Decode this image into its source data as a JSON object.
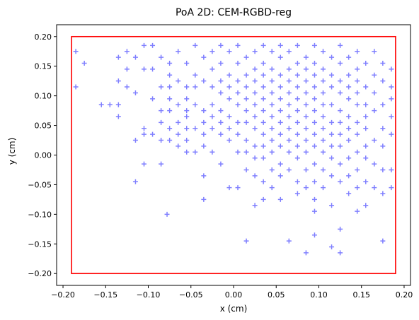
{
  "chart_data": {
    "type": "scatter",
    "title": "PoA 2D: CEM-RGBD-reg",
    "xlabel": "x (cm)",
    "ylabel": "y (cm)",
    "xlim": [
      -0.2075,
      0.2075
    ],
    "ylim": [
      -0.22,
      0.22
    ],
    "xticks": [
      -0.2,
      -0.15,
      -0.1,
      -0.05,
      0.0,
      0.05,
      0.1,
      0.15,
      0.2
    ],
    "xtick_labels": [
      "−0.20",
      "−0.15",
      "−0.10",
      "−0.05",
      "0.00",
      "0.05",
      "0.10",
      "0.15",
      "0.20"
    ],
    "yticks": [
      -0.2,
      -0.15,
      -0.1,
      -0.05,
      0.0,
      0.05,
      0.1,
      0.15,
      0.2
    ],
    "ytick_labels": [
      "−0.20",
      "−0.15",
      "−0.10",
      "−0.05",
      "0.00",
      "0.05",
      "0.10",
      "0.15",
      "0.20"
    ],
    "grid": false,
    "marker": "+",
    "marker_color": "#0000ff",
    "marker_alpha": 0.5,
    "boundary_rect": {
      "x": [
        -0.19,
        0.19
      ],
      "y": [
        -0.2,
        0.2
      ],
      "color": "#ff0000"
    },
    "points": [
      [
        -0.185,
        0.175
      ],
      [
        -0.185,
        0.115
      ],
      [
        -0.175,
        0.155
      ],
      [
        -0.155,
        0.085
      ],
      [
        -0.145,
        0.085
      ],
      [
        -0.135,
        0.165
      ],
      [
        -0.135,
        0.125
      ],
      [
        -0.135,
        0.085
      ],
      [
        -0.135,
        0.065
      ],
      [
        -0.125,
        0.175
      ],
      [
        -0.125,
        0.145
      ],
      [
        -0.125,
        0.115
      ],
      [
        -0.115,
        0.165
      ],
      [
        -0.115,
        0.105
      ],
      [
        -0.115,
        0.025
      ],
      [
        -0.115,
        -0.045
      ],
      [
        -0.105,
        0.185
      ],
      [
        -0.105,
        0.145
      ],
      [
        -0.105,
        0.045
      ],
      [
        -0.105,
        0.035
      ],
      [
        -0.105,
        -0.015
      ],
      [
        -0.095,
        0.185
      ],
      [
        -0.095,
        0.145
      ],
      [
        -0.095,
        0.095
      ],
      [
        -0.095,
        0.035
      ],
      [
        -0.085,
        0.165
      ],
      [
        -0.085,
        0.115
      ],
      [
        -0.085,
        0.075
      ],
      [
        -0.085,
        0.055
      ],
      [
        -0.085,
        0.025
      ],
      [
        -0.085,
        -0.015
      ],
      [
        -0.078,
        -0.1
      ],
      [
        -0.075,
        0.155
      ],
      [
        -0.075,
        0.135
      ],
      [
        -0.075,
        0.115
      ],
      [
        -0.075,
        0.095
      ],
      [
        -0.075,
        0.075
      ],
      [
        -0.075,
        0.045
      ],
      [
        -0.075,
        0.025
      ],
      [
        -0.065,
        0.175
      ],
      [
        -0.065,
        0.125
      ],
      [
        -0.065,
        0.085
      ],
      [
        -0.065,
        0.055
      ],
      [
        -0.065,
        0.035
      ],
      [
        -0.065,
        0.015
      ],
      [
        -0.055,
        0.155
      ],
      [
        -0.055,
        0.115
      ],
      [
        -0.055,
        0.095
      ],
      [
        -0.055,
        0.075
      ],
      [
        -0.055,
        0.065
      ],
      [
        -0.055,
        0.045
      ],
      [
        -0.055,
        0.025
      ],
      [
        -0.055,
        0.005
      ],
      [
        -0.045,
        0.185
      ],
      [
        -0.045,
        0.135
      ],
      [
        -0.045,
        0.115
      ],
      [
        -0.045,
        0.085
      ],
      [
        -0.045,
        0.045
      ],
      [
        -0.045,
        0.005
      ],
      [
        -0.035,
        0.165
      ],
      [
        -0.035,
        0.125
      ],
      [
        -0.035,
        0.075
      ],
      [
        -0.035,
        0.055
      ],
      [
        -0.035,
        0.035
      ],
      [
        -0.035,
        0.015
      ],
      [
        -0.035,
        -0.035
      ],
      [
        -0.035,
        -0.075
      ],
      [
        -0.025,
        0.175
      ],
      [
        -0.025,
        0.145
      ],
      [
        -0.025,
        0.115
      ],
      [
        -0.025,
        0.085
      ],
      [
        -0.025,
        0.065
      ],
      [
        -0.025,
        0.045
      ],
      [
        -0.025,
        0.005
      ],
      [
        -0.015,
        0.185
      ],
      [
        -0.015,
        0.155
      ],
      [
        -0.015,
        0.125
      ],
      [
        -0.015,
        0.105
      ],
      [
        -0.015,
        0.075
      ],
      [
        -0.015,
        0.055
      ],
      [
        -0.015,
        0.035
      ],
      [
        -0.015,
        -0.015
      ],
      [
        -0.005,
        0.175
      ],
      [
        -0.005,
        0.135
      ],
      [
        -0.005,
        0.115
      ],
      [
        -0.005,
        0.095
      ],
      [
        -0.005,
        0.065
      ],
      [
        -0.005,
        0.045
      ],
      [
        -0.005,
        0.025
      ],
      [
        -0.005,
        -0.055
      ],
      [
        0.005,
        0.185
      ],
      [
        0.005,
        0.155
      ],
      [
        0.005,
        0.125
      ],
      [
        0.005,
        0.105
      ],
      [
        0.005,
        0.085
      ],
      [
        0.005,
        0.055
      ],
      [
        0.005,
        0.035
      ],
      [
        0.005,
        0.005
      ],
      [
        0.005,
        -0.055
      ],
      [
        0.015,
        0.165
      ],
      [
        0.015,
        0.135
      ],
      [
        0.015,
        0.115
      ],
      [
        0.015,
        0.095
      ],
      [
        0.015,
        0.075
      ],
      [
        0.015,
        0.055
      ],
      [
        0.015,
        0.025
      ],
      [
        0.015,
        0.005
      ],
      [
        0.015,
        -0.025
      ],
      [
        0.015,
        -0.145
      ],
      [
        0.025,
        0.175
      ],
      [
        0.025,
        0.145
      ],
      [
        0.025,
        0.125
      ],
      [
        0.025,
        0.105
      ],
      [
        0.025,
        0.085
      ],
      [
        0.025,
        0.065
      ],
      [
        0.025,
        0.045
      ],
      [
        0.025,
        0.015
      ],
      [
        0.025,
        -0.005
      ],
      [
        0.025,
        -0.035
      ],
      [
        0.025,
        -0.085
      ],
      [
        0.035,
        0.185
      ],
      [
        0.035,
        0.155
      ],
      [
        0.035,
        0.135
      ],
      [
        0.035,
        0.115
      ],
      [
        0.035,
        0.095
      ],
      [
        0.035,
        0.075
      ],
      [
        0.035,
        0.055
      ],
      [
        0.035,
        0.035
      ],
      [
        0.035,
        0.015
      ],
      [
        0.035,
        -0.005
      ],
      [
        0.035,
        -0.045
      ],
      [
        0.035,
        -0.075
      ],
      [
        0.045,
        0.175
      ],
      [
        0.045,
        0.145
      ],
      [
        0.045,
        0.125
      ],
      [
        0.045,
        0.105
      ],
      [
        0.045,
        0.085
      ],
      [
        0.045,
        0.065
      ],
      [
        0.045,
        0.045
      ],
      [
        0.045,
        0.025
      ],
      [
        0.045,
        0.005
      ],
      [
        0.045,
        -0.025
      ],
      [
        0.045,
        -0.055
      ],
      [
        0.055,
        0.185
      ],
      [
        0.055,
        0.165
      ],
      [
        0.055,
        0.135
      ],
      [
        0.055,
        0.115
      ],
      [
        0.055,
        0.095
      ],
      [
        0.055,
        0.075
      ],
      [
        0.055,
        0.055
      ],
      [
        0.055,
        0.035
      ],
      [
        0.055,
        0.015
      ],
      [
        0.055,
        -0.015
      ],
      [
        0.055,
        -0.035
      ],
      [
        0.055,
        -0.075
      ],
      [
        0.065,
        0.175
      ],
      [
        0.065,
        0.145
      ],
      [
        0.065,
        0.125
      ],
      [
        0.065,
        0.105
      ],
      [
        0.065,
        0.085
      ],
      [
        0.065,
        0.065
      ],
      [
        0.065,
        0.045
      ],
      [
        0.065,
        0.025
      ],
      [
        0.065,
        0.005
      ],
      [
        0.065,
        -0.025
      ],
      [
        0.065,
        -0.145
      ],
      [
        0.075,
        0.185
      ],
      [
        0.075,
        0.155
      ],
      [
        0.075,
        0.135
      ],
      [
        0.075,
        0.115
      ],
      [
        0.075,
        0.095
      ],
      [
        0.075,
        0.075
      ],
      [
        0.075,
        0.055
      ],
      [
        0.075,
        0.035
      ],
      [
        0.075,
        0.015
      ],
      [
        0.075,
        -0.005
      ],
      [
        0.075,
        -0.045
      ],
      [
        0.075,
        -0.065
      ],
      [
        0.085,
        0.165
      ],
      [
        0.085,
        0.145
      ],
      [
        0.085,
        0.125
      ],
      [
        0.085,
        0.105
      ],
      [
        0.085,
        0.085
      ],
      [
        0.085,
        0.065
      ],
      [
        0.085,
        0.045
      ],
      [
        0.085,
        0.025
      ],
      [
        0.085,
        0.005
      ],
      [
        0.085,
        -0.025
      ],
      [
        0.085,
        -0.055
      ],
      [
        0.085,
        -0.165
      ],
      [
        0.095,
        0.185
      ],
      [
        0.095,
        0.155
      ],
      [
        0.095,
        0.135
      ],
      [
        0.095,
        0.115
      ],
      [
        0.095,
        0.095
      ],
      [
        0.095,
        0.075
      ],
      [
        0.095,
        0.055
      ],
      [
        0.095,
        0.035
      ],
      [
        0.095,
        0.015
      ],
      [
        0.095,
        -0.015
      ],
      [
        0.095,
        -0.045
      ],
      [
        0.095,
        -0.075
      ],
      [
        0.095,
        -0.095
      ],
      [
        0.095,
        -0.135
      ],
      [
        0.105,
        0.175
      ],
      [
        0.105,
        0.145
      ],
      [
        0.105,
        0.125
      ],
      [
        0.105,
        0.105
      ],
      [
        0.105,
        0.085
      ],
      [
        0.105,
        0.065
      ],
      [
        0.105,
        0.045
      ],
      [
        0.105,
        0.025
      ],
      [
        0.105,
        0.005
      ],
      [
        0.105,
        -0.025
      ],
      [
        0.105,
        -0.055
      ],
      [
        0.115,
        0.165
      ],
      [
        0.115,
        0.135
      ],
      [
        0.115,
        0.115
      ],
      [
        0.115,
        0.085
      ],
      [
        0.115,
        0.055
      ],
      [
        0.115,
        0.035
      ],
      [
        0.115,
        0.015
      ],
      [
        0.115,
        -0.005
      ],
      [
        0.115,
        -0.035
      ],
      [
        0.115,
        -0.085
      ],
      [
        0.115,
        -0.155
      ],
      [
        0.125,
        0.185
      ],
      [
        0.125,
        0.155
      ],
      [
        0.125,
        0.125
      ],
      [
        0.125,
        0.105
      ],
      [
        0.125,
        0.075
      ],
      [
        0.125,
        0.055
      ],
      [
        0.125,
        0.035
      ],
      [
        0.125,
        0.015
      ],
      [
        0.125,
        -0.015
      ],
      [
        0.125,
        -0.045
      ],
      [
        0.125,
        -0.125
      ],
      [
        0.125,
        -0.165
      ],
      [
        0.135,
        0.165
      ],
      [
        0.135,
        0.135
      ],
      [
        0.135,
        0.115
      ],
      [
        0.135,
        0.095
      ],
      [
        0.135,
        0.065
      ],
      [
        0.135,
        0.045
      ],
      [
        0.135,
        0.025
      ],
      [
        0.135,
        -0.005
      ],
      [
        0.135,
        -0.035
      ],
      [
        0.135,
        -0.065
      ],
      [
        0.145,
        0.175
      ],
      [
        0.145,
        0.145
      ],
      [
        0.145,
        0.125
      ],
      [
        0.145,
        0.105
      ],
      [
        0.145,
        0.085
      ],
      [
        0.145,
        0.055
      ],
      [
        0.145,
        0.035
      ],
      [
        0.145,
        0.005
      ],
      [
        0.145,
        -0.025
      ],
      [
        0.145,
        -0.055
      ],
      [
        0.145,
        -0.095
      ],
      [
        0.155,
        0.155
      ],
      [
        0.155,
        0.115
      ],
      [
        0.155,
        0.085
      ],
      [
        0.155,
        0.065
      ],
      [
        0.155,
        0.045
      ],
      [
        0.155,
        0.015
      ],
      [
        0.155,
        -0.005
      ],
      [
        0.155,
        -0.045
      ],
      [
        0.155,
        -0.085
      ],
      [
        0.165,
        0.175
      ],
      [
        0.165,
        0.135
      ],
      [
        0.165,
        0.105
      ],
      [
        0.165,
        0.075
      ],
      [
        0.165,
        0.025
      ],
      [
        0.165,
        -0.015
      ],
      [
        0.165,
        -0.055
      ],
      [
        0.175,
        0.155
      ],
      [
        0.175,
        0.125
      ],
      [
        0.175,
        0.085
      ],
      [
        0.175,
        0.045
      ],
      [
        0.175,
        0.015
      ],
      [
        0.175,
        -0.025
      ],
      [
        0.175,
        -0.065
      ],
      [
        0.175,
        -0.145
      ],
      [
        0.185,
        0.145
      ],
      [
        0.185,
        0.115
      ],
      [
        0.185,
        0.095
      ],
      [
        0.185,
        0.065
      ],
      [
        0.185,
        0.035
      ],
      [
        0.185,
        -0.025
      ],
      [
        0.185,
        -0.055
      ]
    ]
  }
}
